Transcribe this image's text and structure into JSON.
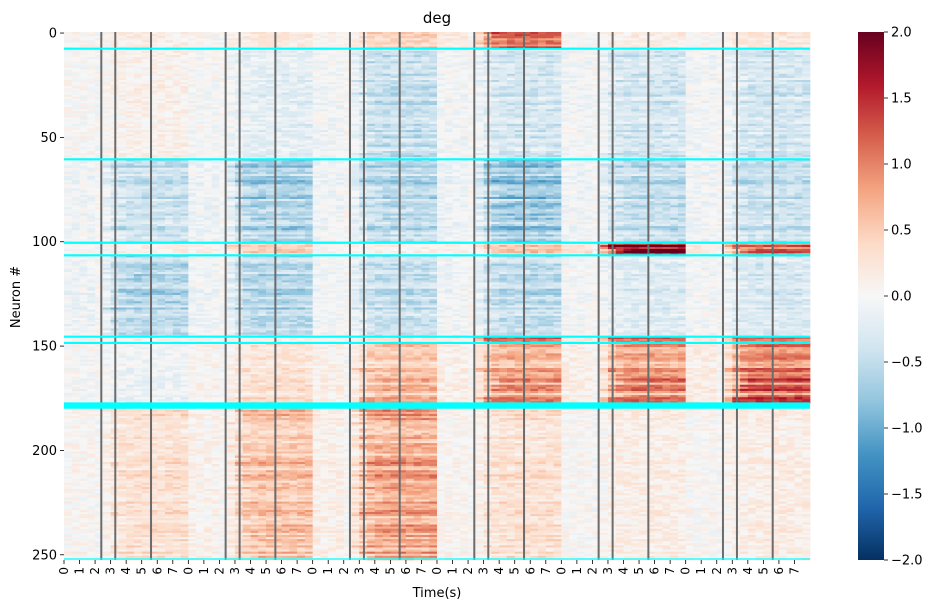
{
  "chart_data": {
    "type": "heatmap",
    "title": "deg",
    "xlabel": "Time(s)",
    "ylabel": "Neuron #",
    "n_rows": 253,
    "time_blocks": 6,
    "block_seconds": 8,
    "x_tick_labels": [
      "0",
      "1",
      "2",
      "3",
      "4",
      "5",
      "6",
      "7"
    ],
    "y_ticks": [
      0,
      50,
      100,
      150,
      200,
      250
    ],
    "colorbar": {
      "min": -2.0,
      "max": 2.0,
      "ticks": [
        2.0,
        1.5,
        1.0,
        0.5,
        0.0,
        -0.5,
        -1.0,
        -1.5,
        -2.0
      ],
      "tick_labels": [
        "2.0",
        "1.5",
        "1.0",
        "0.5",
        "0.0",
        "−0.5",
        "−1.0",
        "−1.5",
        "−2.0"
      ],
      "colormap": "RdBu_r"
    },
    "event_times_s": [
      2.4,
      3.3,
      5.6
    ],
    "group_boundaries": [
      8,
      61,
      101,
      107,
      146,
      149,
      178,
      179,
      180
    ],
    "group_line_color": "#00ffff",
    "event_line_color": "#6b6b6b",
    "row_groups": [
      {
        "rows": [
          0,
          8
        ],
        "block_means": [
          0.15,
          0.2,
          0.45,
          1.2,
          0.15,
          0.25
        ]
      },
      {
        "rows": [
          8,
          61
        ],
        "block_means": [
          0.1,
          -0.2,
          -0.45,
          -0.35,
          -0.35,
          -0.35
        ]
      },
      {
        "rows": [
          61,
          101
        ],
        "block_means": [
          -0.45,
          -0.65,
          -0.55,
          -0.75,
          -0.5,
          -0.45
        ]
      },
      {
        "rows": [
          101,
          107
        ],
        "block_means": [
          0.1,
          0.4,
          0.1,
          0.45,
          1.6,
          1.0
        ]
      },
      {
        "rows": [
          107,
          146
        ],
        "block_means": [
          -0.55,
          -0.55,
          -0.45,
          -0.5,
          -0.25,
          -0.3
        ]
      },
      {
        "rows": [
          146,
          149
        ],
        "block_means": [
          0.1,
          0.1,
          0.3,
          1.5,
          1.5,
          1.4
        ]
      },
      {
        "rows": [
          149,
          178
        ],
        "block_means": [
          -0.1,
          0.3,
          0.6,
          0.8,
          0.9,
          1.1
        ]
      },
      {
        "rows": [
          178,
          180
        ],
        "block_means": [
          0.0,
          0.0,
          0.0,
          0.0,
          0.0,
          0.0
        ]
      },
      {
        "rows": [
          180,
          253
        ],
        "block_means": [
          0.3,
          0.55,
          0.75,
          0.3,
          0.15,
          0.15
        ]
      }
    ]
  }
}
